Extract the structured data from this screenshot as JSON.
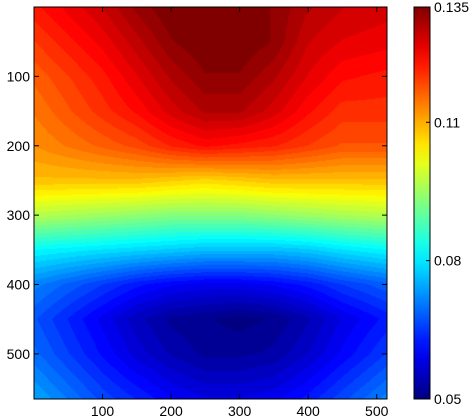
{
  "chart_data": {
    "type": "heatmap",
    "title": "",
    "xlabel": "",
    "ylabel": "",
    "xlim": [
      0,
      515
    ],
    "ylim": [
      0,
      565
    ],
    "y_reversed": true,
    "grid": false,
    "colormap": "jet",
    "x_ticks": [
      100,
      200,
      300,
      400,
      500
    ],
    "y_ticks": [
      100,
      200,
      300,
      400,
      500
    ],
    "colorbar": {
      "range": [
        0.05,
        0.135
      ],
      "ticks": [
        0.05,
        0.08,
        0.11,
        0.135
      ],
      "tick_labels": [
        "0.05",
        "0.08",
        "0.11",
        "0.135"
      ]
    },
    "field": {
      "x": [
        0,
        50,
        100,
        150,
        200,
        250,
        300,
        350,
        400,
        450,
        515
      ],
      "y": [
        0,
        50,
        100,
        150,
        200,
        250,
        300,
        350,
        400,
        450,
        500,
        565
      ],
      "values": [
        [
          0.122,
          0.125,
          0.128,
          0.132,
          0.135,
          0.135,
          0.135,
          0.133,
          0.13,
          0.128,
          0.127
        ],
        [
          0.119,
          0.122,
          0.125,
          0.129,
          0.133,
          0.135,
          0.135,
          0.133,
          0.128,
          0.126,
          0.125
        ],
        [
          0.116,
          0.119,
          0.122,
          0.126,
          0.13,
          0.133,
          0.133,
          0.13,
          0.126,
          0.123,
          0.122
        ],
        [
          0.114,
          0.117,
          0.12,
          0.123,
          0.127,
          0.13,
          0.13,
          0.127,
          0.123,
          0.12,
          0.12
        ],
        [
          0.112,
          0.114,
          0.116,
          0.118,
          0.121,
          0.123,
          0.122,
          0.121,
          0.119,
          0.117,
          0.117
        ],
        [
          0.108,
          0.108,
          0.108,
          0.108,
          0.107,
          0.106,
          0.107,
          0.108,
          0.108,
          0.108,
          0.108
        ],
        [
          0.097,
          0.096,
          0.095,
          0.094,
          0.093,
          0.093,
          0.093,
          0.094,
          0.095,
          0.096,
          0.097
        ],
        [
          0.082,
          0.081,
          0.08,
          0.079,
          0.078,
          0.077,
          0.077,
          0.077,
          0.078,
          0.08,
          0.082
        ],
        [
          0.072,
          0.069,
          0.066,
          0.063,
          0.061,
          0.06,
          0.06,
          0.061,
          0.063,
          0.066,
          0.069
        ],
        [
          0.068,
          0.064,
          0.06,
          0.056,
          0.053,
          0.052,
          0.051,
          0.052,
          0.055,
          0.059,
          0.063
        ],
        [
          0.07,
          0.066,
          0.062,
          0.058,
          0.055,
          0.053,
          0.053,
          0.054,
          0.057,
          0.061,
          0.066
        ],
        [
          0.075,
          0.071,
          0.067,
          0.064,
          0.061,
          0.059,
          0.059,
          0.06,
          0.063,
          0.067,
          0.072
        ]
      ]
    }
  }
}
